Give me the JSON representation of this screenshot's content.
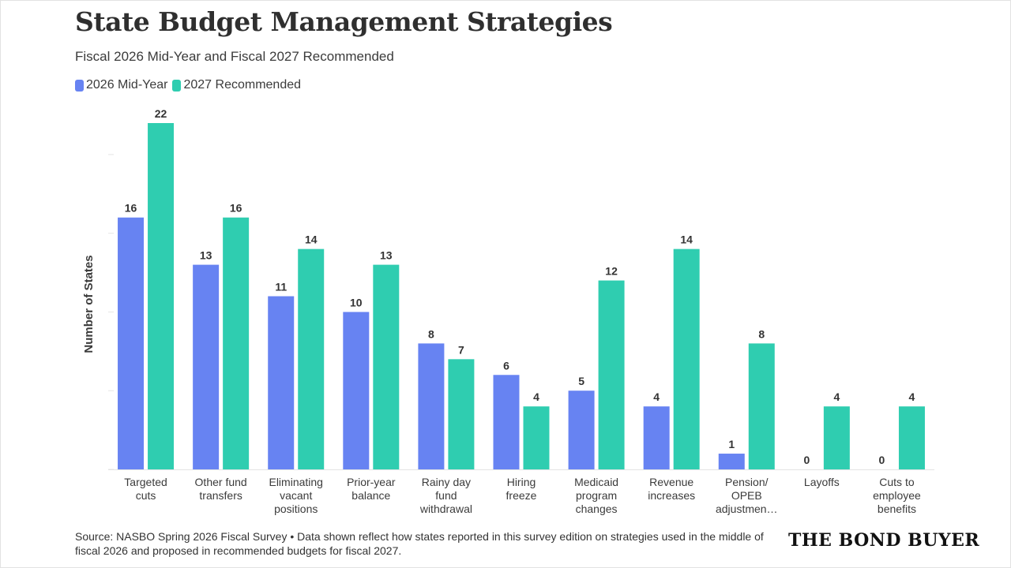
{
  "title": "State Budget Management Strategies",
  "subtitle": "Fiscal 2026 Mid-Year and Fiscal 2027 Recommended",
  "source": "Source: NASBO Spring 2026 Fiscal Survey • Data shown reflect how states reported in this survey edition on strategies used in the middle of fiscal 2026 and proposed in recommended budgets for fiscal 2027.",
  "logo": "THE BOND BUYER",
  "colors": {
    "series1": "#6783f2",
    "series2": "#2fcdb0"
  },
  "chart_data": {
    "type": "bar",
    "title": "State Budget Management Strategies",
    "subtitle": "Fiscal 2026 Mid-Year and Fiscal 2027 Recommended",
    "xlabel": "",
    "ylabel": "Number of States",
    "ylim": [
      0,
      22
    ],
    "grid": false,
    "legend": "top-left",
    "categories": [
      [
        "Targeted",
        "cuts"
      ],
      [
        "Other fund",
        "transfers"
      ],
      [
        "Eliminating",
        "vacant",
        "positions"
      ],
      [
        "Prior-year",
        "balance"
      ],
      [
        "Rainy day",
        "fund",
        "withdrawal"
      ],
      [
        "Hiring",
        "freeze"
      ],
      [
        "Medicaid",
        "program",
        "changes"
      ],
      [
        "Revenue",
        "increases"
      ],
      [
        "Pension/",
        "OPEB",
        "adjustmen…"
      ],
      [
        "Layoffs"
      ],
      [
        "Cuts to",
        "employee",
        "benefits"
      ]
    ],
    "series": [
      {
        "name": "2026 Mid-Year",
        "values": [
          16,
          13,
          11,
          10,
          8,
          6,
          5,
          4,
          1,
          0,
          0
        ]
      },
      {
        "name": "2027 Recommended",
        "values": [
          22,
          16,
          14,
          13,
          7,
          4,
          12,
          14,
          8,
          4,
          4
        ]
      }
    ]
  }
}
